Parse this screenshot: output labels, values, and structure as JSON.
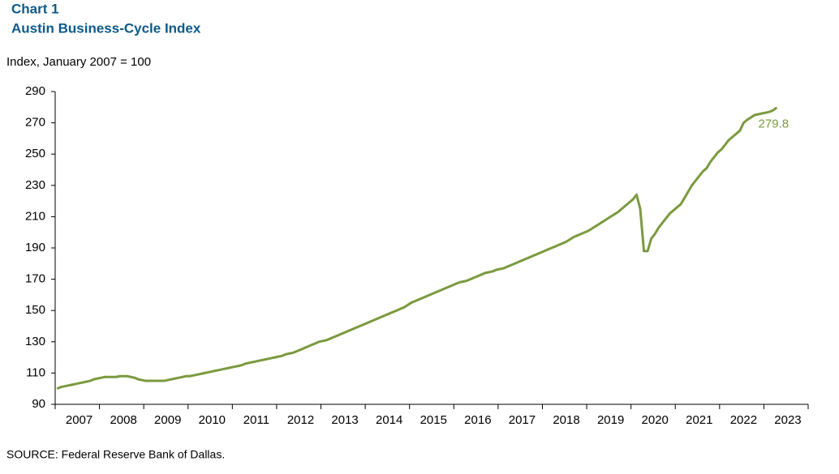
{
  "chart_data": {
    "type": "line",
    "title": "Chart 1",
    "subtitle": "Austin Business-Cycle Index",
    "y_label": "Index, January 2007 = 100",
    "source": "SOURCE: Federal Reserve Bank of Dallas.",
    "categories": [
      null,
      null,
      null,
      null,
      null,
      null,
      "2007",
      null,
      null,
      null,
      null,
      null,
      null,
      null,
      null,
      null,
      null,
      null,
      "2008",
      null,
      null,
      null,
      null,
      null,
      null,
      null,
      null,
      null,
      null,
      null,
      "2009",
      null,
      null,
      null,
      null,
      null,
      null,
      null,
      null,
      null,
      null,
      null,
      "2010",
      null,
      null,
      null,
      null,
      null,
      null,
      null,
      null,
      null,
      null,
      null,
      "2011",
      null,
      null,
      null,
      null,
      null,
      null,
      null,
      null,
      null,
      null,
      null,
      "2012",
      null,
      null,
      null,
      null,
      null,
      null,
      null,
      null,
      null,
      null,
      null,
      "2013",
      null,
      null,
      null,
      null,
      null,
      null,
      null,
      null,
      null,
      null,
      null,
      "2014",
      null,
      null,
      null,
      null,
      null,
      null,
      null,
      null,
      null,
      null,
      null,
      "2015",
      null,
      null,
      null,
      null,
      null,
      null,
      null,
      null,
      null,
      null,
      null,
      "2016",
      null,
      null,
      null,
      null,
      null,
      null,
      null,
      null,
      null,
      null,
      null,
      "2017",
      null,
      null,
      null,
      null,
      null,
      null,
      null,
      null,
      null,
      null,
      null,
      "2018",
      null,
      null,
      null,
      null,
      null,
      null,
      null,
      null,
      null,
      null,
      null,
      "2019",
      null,
      null,
      null,
      null,
      null,
      null,
      null,
      null,
      null,
      null,
      null,
      "2020",
      null,
      null,
      null,
      null,
      null,
      null,
      null,
      null,
      null,
      null,
      null,
      "2021",
      null,
      null,
      null,
      null,
      null,
      null,
      null,
      null,
      null,
      null,
      null,
      "2022",
      null,
      null,
      null,
      null,
      null,
      null,
      null,
      null,
      null,
      null,
      null,
      "2023",
      null,
      null,
      null,
      null,
      null
    ],
    "series": [
      {
        "name": "Austin Business-Cycle Index",
        "color": "#7a9a3e",
        "values": [
          100,
          101,
          101.5,
          102,
          102.5,
          103,
          103.5,
          104,
          104.5,
          105,
          106,
          106.5,
          107,
          107.5,
          107.5,
          107.5,
          107.5,
          108,
          108,
          108,
          107.5,
          107,
          106,
          105.5,
          105,
          105,
          105,
          105,
          105,
          105,
          105.5,
          106,
          106.5,
          107,
          107.5,
          108,
          108,
          108.5,
          109,
          109.5,
          110,
          110.5,
          111,
          111.5,
          112,
          112.5,
          113,
          113.5,
          114,
          114.5,
          115,
          116,
          116.5,
          117,
          117.5,
          118,
          118.5,
          119,
          119.5,
          120,
          120.5,
          121,
          122,
          122.5,
          123,
          124,
          125,
          126,
          127,
          128,
          129,
          130,
          130.5,
          131,
          132,
          133,
          134,
          135,
          136,
          137,
          138,
          139,
          140,
          141,
          142,
          143,
          144,
          145,
          146,
          147,
          148,
          149,
          150,
          151,
          152,
          153.5,
          155,
          156,
          157,
          158,
          159,
          160,
          161,
          162,
          163,
          164,
          165,
          166,
          167,
          168,
          168.5,
          169,
          170,
          171,
          172,
          173,
          174,
          174.5,
          175,
          176,
          176.5,
          177,
          178,
          179,
          180,
          181,
          182,
          183,
          184,
          185,
          186,
          187,
          188,
          189,
          190,
          191,
          192,
          193,
          194,
          195.5,
          197,
          198,
          199,
          200,
          201,
          202.5,
          204,
          205.5,
          207,
          208.5,
          210,
          211.5,
          213,
          215,
          217,
          219,
          221,
          224,
          215,
          188,
          188,
          196,
          199,
          203,
          206,
          209,
          212,
          214,
          216,
          218,
          222,
          226,
          230,
          233,
          236,
          239,
          241,
          245,
          248,
          251,
          253,
          256,
          259,
          261,
          263,
          265,
          270,
          272,
          273.5,
          275,
          275.5,
          276,
          276.5,
          277,
          278,
          279.8,
          null,
          null,
          null,
          null,
          null,
          null,
          null,
          null
        ]
      }
    ],
    "ylim": [
      90,
      290
    ],
    "yticks": [
      90,
      110,
      130,
      150,
      170,
      190,
      210,
      230,
      250,
      270,
      290
    ],
    "grid": false
  }
}
